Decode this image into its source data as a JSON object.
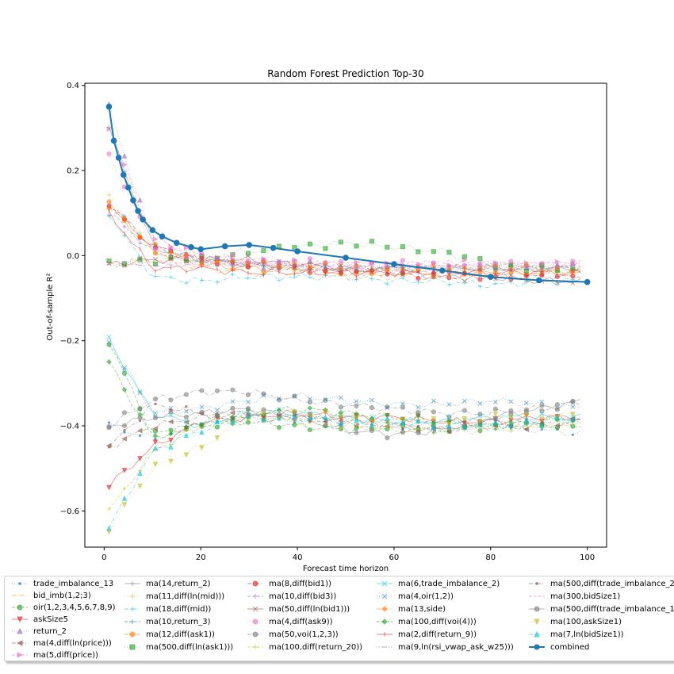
{
  "chart_data": {
    "type": "line",
    "title": "Random Forest Prediction Top-30",
    "xlabel": "Forecast time horizon",
    "ylabel": "Out-of-sample R²",
    "xlim": [
      -4,
      104
    ],
    "ylim": [
      -0.685,
      0.405
    ],
    "xticks": [
      0,
      20,
      40,
      60,
      80,
      100
    ],
    "yticks": [
      -0.6,
      -0.4,
      -0.2,
      0.0,
      0.2,
      0.4
    ],
    "ytick_labels": [
      "−0.6",
      "−0.4",
      "−0.2",
      "0.0",
      "0.2",
      "0.4"
    ],
    "grid": false,
    "legend_position": "bottom",
    "x": [
      1,
      10,
      20,
      30,
      40,
      50,
      60,
      70,
      80,
      90,
      100
    ],
    "series": [
      {
        "name": "trade_imbalance_13",
        "color": "#1f77b4",
        "marker": ".",
        "line": "dotted",
        "values": [
          -0.4,
          -0.43,
          -0.4,
          -0.38,
          -0.39,
          -0.38,
          -0.4,
          -0.41,
          -0.4,
          -0.41,
          -0.42
        ]
      },
      {
        "name": "bid_imb(1,2;3)",
        "color": "#ff7f0e",
        "marker": "",
        "line": "dashdot",
        "values": [
          -0.02,
          -0.01,
          -0.03,
          -0.04,
          -0.04,
          -0.05,
          -0.05,
          -0.05,
          -0.04,
          -0.04,
          -0.04
        ]
      },
      {
        "name": "oir(1,2,3,4,5,6,7,8,9)",
        "color": "#2ca02c",
        "marker": "o",
        "line": "dashed",
        "values": [
          -0.2,
          -0.42,
          -0.4,
          -0.39,
          -0.4,
          -0.41,
          -0.4,
          -0.41,
          -0.4,
          -0.4,
          -0.4
        ]
      },
      {
        "name": "askSize5",
        "color": "#d62728",
        "marker": "v",
        "line": "solid",
        "values": [
          -0.54,
          -0.45,
          -0.39,
          -0.38,
          -0.37,
          -0.38,
          -0.38,
          -0.39,
          -0.39,
          -0.38,
          -0.38
        ]
      },
      {
        "name": "return_2",
        "color": "#9467bd",
        "marker": "^",
        "line": "dotted",
        "values": [
          0.35,
          0.03,
          -0.01,
          -0.02,
          -0.02,
          -0.03,
          -0.03,
          -0.03,
          -0.03,
          -0.02,
          -0.02
        ]
      },
      {
        "name": "ma(4,diff(ln(price)))",
        "color": "#8c564b",
        "marker": "<",
        "line": "dashdot",
        "values": [
          -0.45,
          -0.4,
          -0.38,
          -0.37,
          -0.38,
          -0.39,
          -0.4,
          -0.41,
          -0.4,
          -0.4,
          -0.39
        ]
      },
      {
        "name": "ma(5,diff(price))",
        "color": "#e377c2",
        "marker": ">",
        "line": "dashed",
        "values": [
          0.3,
          0.04,
          0.0,
          -0.01,
          -0.02,
          -0.02,
          -0.02,
          -0.02,
          -0.02,
          -0.02,
          -0.02
        ]
      },
      {
        "name": "ma(14,return_2)",
        "color": "#7f7f7f",
        "marker": "1",
        "line": "solid",
        "values": [
          0.3,
          0.02,
          -0.01,
          -0.02,
          -0.03,
          -0.03,
          -0.03,
          -0.03,
          -0.03,
          -0.03,
          -0.03
        ]
      },
      {
        "name": "ma(11,diff(ln(mid)))",
        "color": "#bcbd22",
        "marker": "2",
        "line": "dotted",
        "values": [
          0.14,
          0.01,
          -0.01,
          -0.02,
          -0.03,
          -0.03,
          -0.03,
          -0.03,
          -0.03,
          -0.03,
          -0.03
        ]
      },
      {
        "name": "ma(18,diff(mid))",
        "color": "#17becf",
        "marker": "3",
        "line": "dashdot",
        "values": [
          0.1,
          -0.05,
          -0.06,
          -0.05,
          -0.05,
          -0.05,
          -0.06,
          -0.06,
          -0.07,
          -0.06,
          -0.06
        ]
      },
      {
        "name": "ma(10,return_3)",
        "color": "#1f77b4",
        "marker": "4",
        "line": "dashed",
        "values": [
          0.12,
          0.02,
          -0.01,
          -0.02,
          -0.03,
          -0.03,
          -0.03,
          -0.03,
          -0.03,
          -0.03,
          -0.03
        ]
      },
      {
        "name": "ma(12,diff(ask1))",
        "color": "#ff7f0e",
        "marker": "8",
        "line": "solid",
        "values": [
          0.12,
          0.01,
          -0.02,
          -0.03,
          -0.03,
          -0.04,
          -0.04,
          -0.04,
          -0.04,
          -0.04,
          -0.04
        ]
      },
      {
        "name": "ma(500,diff(ln(ask1)))",
        "color": "#2ca02c",
        "marker": "s",
        "line": "dotted",
        "values": [
          -0.02,
          -0.01,
          -0.01,
          0.01,
          0.02,
          0.03,
          0.02,
          0.01,
          -0.02,
          -0.03,
          -0.04
        ]
      },
      {
        "name": "ma(8,diff(bid1))",
        "color": "#d62728",
        "marker": "p",
        "line": "dashdot",
        "values": [
          0.12,
          0.02,
          -0.01,
          -0.02,
          -0.03,
          -0.04,
          -0.04,
          -0.05,
          -0.05,
          -0.05,
          -0.05
        ]
      },
      {
        "name": "ma(10,diff(bid3))",
        "color": "#9467bd",
        "marker": "P",
        "line": "dashed",
        "values": [
          0.1,
          0.01,
          -0.01,
          -0.02,
          -0.02,
          -0.03,
          -0.03,
          -0.03,
          -0.03,
          -0.03,
          -0.03
        ]
      },
      {
        "name": "ma(50,diff(ln(bid1)))",
        "color": "#8c564b",
        "marker": "*",
        "line": "solid",
        "values": [
          -0.02,
          -0.01,
          -0.01,
          -0.01,
          -0.02,
          -0.03,
          -0.04,
          -0.05,
          -0.05,
          -0.06,
          -0.06
        ]
      },
      {
        "name": "ma(4,diff(ask9))",
        "color": "#e377c2",
        "marker": "h",
        "line": "dotted",
        "values": [
          0.24,
          0.02,
          0.0,
          -0.01,
          -0.01,
          -0.02,
          -0.02,
          -0.02,
          -0.02,
          -0.02,
          -0.02
        ]
      },
      {
        "name": "ma(50,voi(1,2,3))",
        "color": "#7f7f7f",
        "marker": "H",
        "line": "dashdot",
        "values": [
          -0.4,
          -0.34,
          -0.32,
          -0.32,
          -0.34,
          -0.35,
          -0.36,
          -0.37,
          -0.37,
          -0.36,
          -0.34
        ]
      },
      {
        "name": "ma(100,diff(return_20))",
        "color": "#bcbd22",
        "marker": "+",
        "line": "dashed",
        "values": [
          -0.6,
          -0.46,
          -0.4,
          -0.38,
          -0.39,
          -0.4,
          -0.41,
          -0.41,
          -0.41,
          -0.4,
          -0.39
        ]
      },
      {
        "name": "ma(6,trade_imbalance_2)",
        "color": "#17becf",
        "marker": "x",
        "line": "solid",
        "values": [
          -0.2,
          -0.37,
          -0.4,
          -0.37,
          -0.37,
          -0.38,
          -0.39,
          -0.39,
          -0.38,
          -0.38,
          -0.38
        ]
      },
      {
        "name": "ma(4,oir(1,2))",
        "color": "#1f77b4",
        "marker": "X",
        "line": "dotted",
        "values": [
          -0.2,
          -0.37,
          -0.36,
          -0.34,
          -0.33,
          -0.34,
          -0.35,
          -0.35,
          -0.34,
          -0.35,
          -0.36
        ]
      },
      {
        "name": "ma(13,side)",
        "color": "#ff7f0e",
        "marker": "D",
        "line": "dashdot",
        "values": [
          0.12,
          0.02,
          -0.01,
          -0.02,
          -0.02,
          -0.03,
          -0.03,
          -0.03,
          -0.03,
          -0.03,
          -0.03
        ]
      },
      {
        "name": "ma(100,diff(voi(4)))",
        "color": "#2ca02c",
        "marker": "d",
        "line": "dashed",
        "values": [
          -0.25,
          -0.43,
          -0.39,
          -0.37,
          -0.36,
          -0.37,
          -0.38,
          -0.39,
          -0.4,
          -0.39,
          -0.38
        ]
      },
      {
        "name": "ma(2,diff(return_9))",
        "color": "#d62728",
        "marker": "|",
        "line": "solid",
        "values": [
          0.1,
          -0.03,
          -0.03,
          -0.04,
          -0.04,
          -0.04,
          -0.04,
          -0.04,
          -0.04,
          -0.04,
          -0.04
        ]
      },
      {
        "name": "ma(9,ln(rsi_vwap_ask_w25)))",
        "color": "#9467bd",
        "marker": "_",
        "line": "dotted",
        "values": [
          -0.02,
          -0.02,
          -0.02,
          -0.02,
          -0.03,
          -0.03,
          -0.03,
          -0.03,
          -0.03,
          -0.03,
          -0.03
        ]
      },
      {
        "name": "ma(500,diff(trade_imbalance_2",
        "color": "#8c564b",
        "marker": ".",
        "line": "dashdot",
        "values": [
          -0.45,
          -0.35,
          -0.37,
          -0.38,
          -0.38,
          -0.39,
          -0.4,
          -0.4,
          -0.39,
          -0.39,
          -0.38
        ]
      },
      {
        "name": "ma(300,bidSize1)",
        "color": "#e377c2",
        "marker": "",
        "line": "dashed",
        "values": [
          -0.02,
          -0.02,
          -0.02,
          -0.02,
          -0.02,
          -0.02,
          -0.02,
          -0.02,
          -0.02,
          -0.02,
          -0.02
        ]
      },
      {
        "name": "ma(500,diff(trade_imbalance_1",
        "color": "#7f7f7f",
        "marker": "o",
        "line": "solid",
        "values": [
          -0.4,
          -0.38,
          -0.37,
          -0.36,
          -0.38,
          -0.41,
          -0.42,
          -0.41,
          -0.38,
          -0.36,
          -0.34
        ]
      },
      {
        "name": "ma(100,askSize1)",
        "color": "#bcbd22",
        "marker": "v",
        "line": "dotted",
        "values": [
          -0.64,
          -0.5,
          -0.45,
          -0.38,
          -0.37,
          -0.38,
          -0.39,
          -0.39,
          -0.38,
          -0.38,
          -0.37
        ]
      },
      {
        "name": "ma(7,ln(bidSize1))",
        "color": "#17becf",
        "marker": "^",
        "line": "dashdot",
        "values": [
          -0.64,
          -0.46,
          -0.41,
          -0.38,
          -0.38,
          -0.39,
          -0.39,
          -0.4,
          -0.4,
          -0.39,
          -0.38
        ]
      },
      {
        "name": "combined",
        "color": "#1f77b4",
        "marker": "o",
        "line": "solid",
        "bold": true,
        "x": [
          1,
          2,
          3,
          4,
          5,
          6,
          7,
          8,
          10,
          12,
          15,
          18,
          20,
          25,
          30,
          35,
          40,
          50,
          60,
          70,
          80,
          90,
          100
        ],
        "values": [
          0.35,
          0.27,
          0.23,
          0.19,
          0.16,
          0.13,
          0.105,
          0.085,
          0.06,
          0.045,
          0.03,
          0.02,
          0.015,
          0.022,
          0.025,
          0.018,
          0.01,
          -0.005,
          -0.02,
          -0.035,
          -0.05,
          -0.058,
          -0.062
        ]
      }
    ]
  }
}
